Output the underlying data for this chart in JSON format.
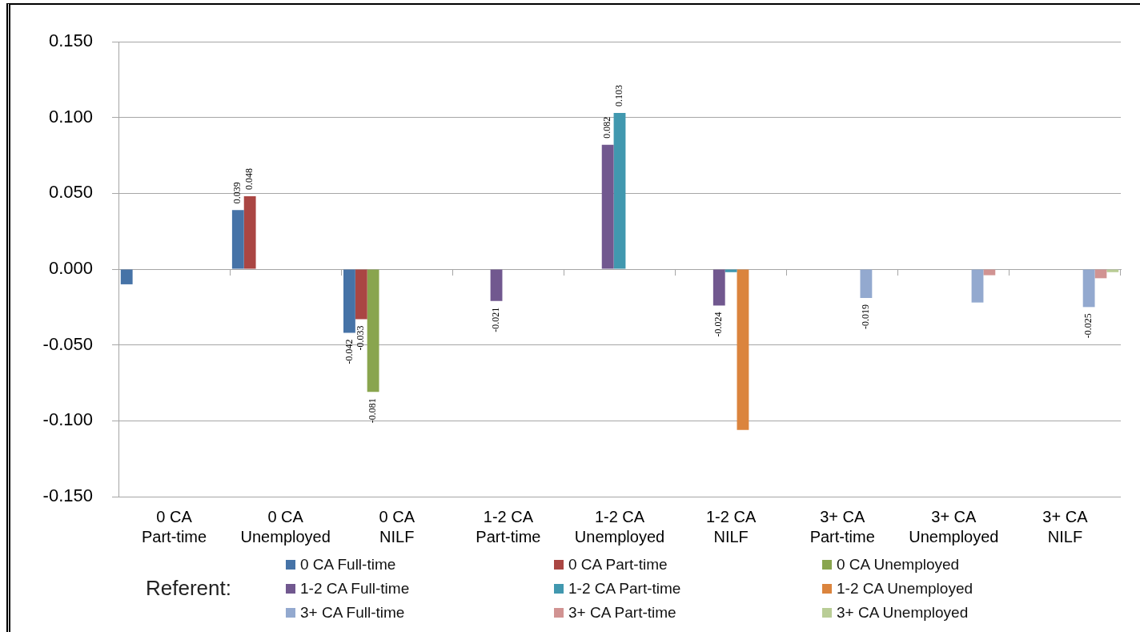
{
  "chart_data": {
    "type": "bar",
    "categories": [
      "0 CA Part-time",
      "0 CA Unemployed",
      "0 CA NILF",
      "1-2 CA Part-time",
      "1-2 CA Unemployed",
      "1-2 CA NILF",
      "3+ CA Part-time",
      "3+ CA Unemployed",
      "3+ CA NILF"
    ],
    "series": [
      {
        "name": "0 CA Full-time",
        "color": "#4673a7",
        "values": [
          -0.01,
          0.039,
          -0.042,
          null,
          null,
          null,
          null,
          null,
          null
        ],
        "value_labels": [
          null,
          "0.039",
          "-0.042",
          null,
          null,
          null,
          null,
          null,
          null
        ]
      },
      {
        "name": "0 CA Part-time",
        "color": "#aa4643",
        "values": [
          null,
          0.048,
          -0.033,
          null,
          null,
          null,
          null,
          null,
          null
        ],
        "value_labels": [
          null,
          "0.048",
          "-0.033",
          null,
          null,
          null,
          null,
          null,
          null
        ]
      },
      {
        "name": "0 CA Unemployed",
        "color": "#89a54e",
        "values": [
          null,
          null,
          -0.081,
          null,
          null,
          null,
          null,
          null,
          null
        ],
        "value_labels": [
          null,
          null,
          "-0.081",
          null,
          null,
          null,
          null,
          null,
          null
        ]
      },
      {
        "name": "1-2 CA Full-time",
        "color": "#71588f",
        "values": [
          null,
          null,
          null,
          -0.021,
          0.082,
          -0.024,
          null,
          null,
          null
        ],
        "value_labels": [
          null,
          null,
          null,
          "-0.021",
          "0.082",
          "-0.024",
          null,
          null,
          null
        ]
      },
      {
        "name": "1-2 CA Part-time",
        "color": "#4198af",
        "values": [
          null,
          null,
          null,
          null,
          0.103,
          -0.002,
          null,
          null,
          null
        ],
        "value_labels": [
          null,
          null,
          null,
          null,
          "0.103",
          null,
          null,
          null,
          null
        ]
      },
      {
        "name": "1-2 CA Unemployed",
        "color": "#db843d",
        "values": [
          null,
          null,
          null,
          null,
          null,
          -0.106,
          null,
          null,
          null
        ]
      },
      {
        "name": "3+ CA Full-time",
        "color": "#93a9cf",
        "values": [
          null,
          null,
          null,
          null,
          null,
          null,
          -0.019,
          -0.022,
          -0.025
        ],
        "value_labels": [
          null,
          null,
          null,
          null,
          null,
          null,
          "-0.019",
          null,
          "-0.025"
        ]
      },
      {
        "name": "3+ CA Part-time",
        "color": "#d19392",
        "values": [
          null,
          null,
          null,
          null,
          null,
          null,
          null,
          -0.004,
          -0.006
        ]
      },
      {
        "name": "3+ CA Unemployed",
        "color": "#b9cd96",
        "values": [
          null,
          null,
          null,
          null,
          null,
          null,
          null,
          null,
          -0.002
        ]
      }
    ],
    "ylim": [
      -0.15,
      0.15
    ],
    "yticks": [
      {
        "value": -0.15,
        "label": "-0.150"
      },
      {
        "value": -0.1,
        "label": "-0.100"
      },
      {
        "value": -0.05,
        "label": "-0.050"
      },
      {
        "value": 0,
        "label": "0.000"
      },
      {
        "value": 0.05,
        "label": "0.050"
      },
      {
        "value": 0.1,
        "label": "0.100"
      },
      {
        "value": 0.15,
        "label": "0.150"
      }
    ],
    "grid": "y",
    "legend": "bottom",
    "legend_title": "Referent:"
  }
}
